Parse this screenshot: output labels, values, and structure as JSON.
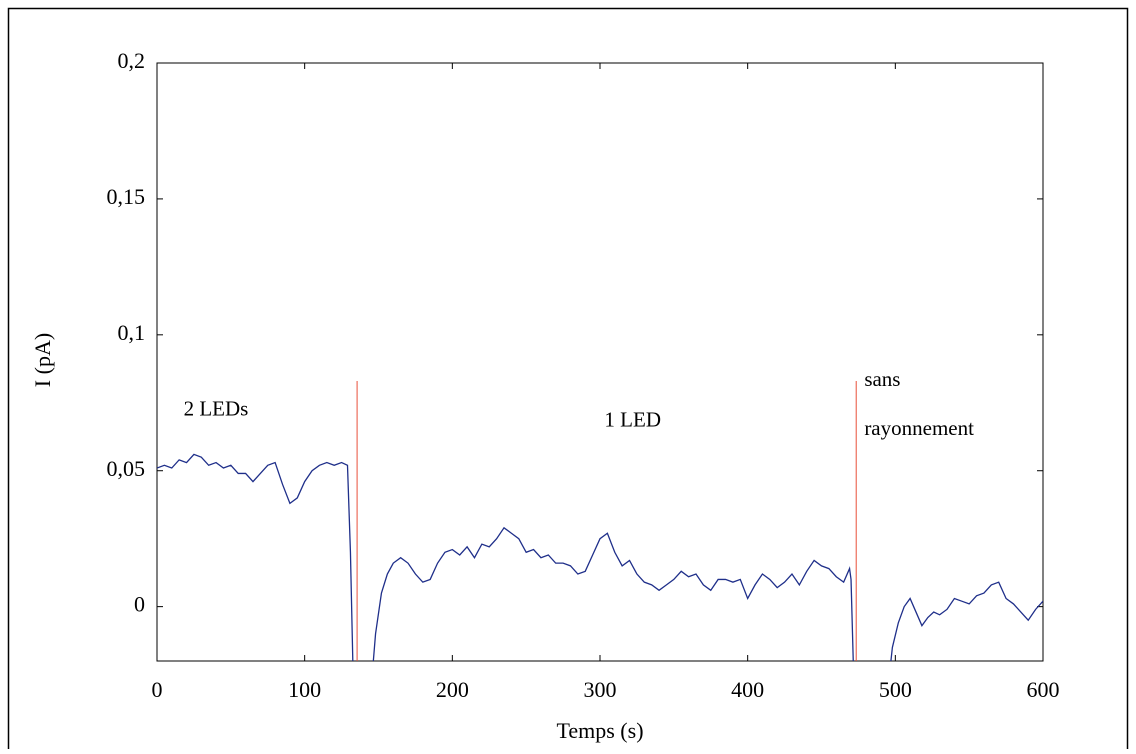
{
  "chart_data": {
    "type": "line",
    "xlabel": "Temps (s)",
    "ylabel": "I (pA)",
    "xlim": [
      0,
      600
    ],
    "ylim": [
      -0.02,
      0.2
    ],
    "xticks": [
      0,
      100,
      200,
      300,
      400,
      500,
      600
    ],
    "yticks": [
      {
        "value": 0,
        "label": "0"
      },
      {
        "value": 0.05,
        "label": "0,05"
      },
      {
        "value": 0.1,
        "label": "0,1"
      },
      {
        "value": 0.15,
        "label": "0,15"
      },
      {
        "value": 0.2,
        "label": "0,2"
      }
    ],
    "vlines": {
      "color": "#e8503a",
      "x": [
        135.5,
        473.5
      ],
      "top": 0.083
    },
    "annotations": [
      {
        "text": "2 LEDs",
        "x": 18,
        "y": 0.072
      },
      {
        "text": "1 LED",
        "x": 303,
        "y": 0.068
      },
      {
        "text": "sans",
        "x": 479,
        "y": 0.083
      },
      {
        "text": "rayonnement",
        "x": 479,
        "y": 0.065
      }
    ],
    "series": [
      {
        "color": "#1f2f8a",
        "x": [
          0,
          5,
          10,
          15,
          20,
          25,
          30,
          35,
          40,
          45,
          50,
          55,
          60,
          65,
          70,
          75,
          80,
          85,
          90,
          95,
          100,
          105,
          110,
          115,
          120,
          125,
          129,
          131,
          133,
          145,
          148,
          152,
          156,
          160,
          165,
          170,
          175,
          180,
          185,
          190,
          195,
          200,
          205,
          210,
          215,
          220,
          225,
          230,
          235,
          240,
          245,
          250,
          255,
          260,
          265,
          270,
          275,
          280,
          285,
          290,
          295,
          300,
          305,
          310,
          315,
          320,
          325,
          330,
          335,
          340,
          345,
          350,
          355,
          360,
          365,
          370,
          375,
          380,
          385,
          390,
          395,
          400,
          405,
          410,
          415,
          420,
          425,
          430,
          435,
          440,
          445,
          450,
          455,
          460,
          465,
          469,
          470,
          472,
          495,
          498,
          502,
          506,
          510,
          514,
          518,
          522,
          526,
          530,
          535,
          540,
          545,
          550,
          555,
          560,
          565,
          570,
          575,
          580,
          585,
          590,
          595,
          600
        ],
        "values": [
          0.051,
          0.052,
          0.051,
          0.054,
          0.053,
          0.056,
          0.055,
          0.052,
          0.053,
          0.051,
          0.052,
          0.049,
          0.049,
          0.046,
          0.049,
          0.052,
          0.053,
          0.045,
          0.038,
          0.04,
          0.046,
          0.05,
          0.052,
          0.053,
          0.052,
          0.053,
          0.052,
          0.02,
          -0.03,
          -0.03,
          -0.01,
          0.005,
          0.012,
          0.016,
          0.018,
          0.016,
          0.012,
          0.009,
          0.01,
          0.016,
          0.02,
          0.021,
          0.019,
          0.022,
          0.018,
          0.023,
          0.022,
          0.025,
          0.029,
          0.027,
          0.025,
          0.02,
          0.021,
          0.018,
          0.019,
          0.016,
          0.016,
          0.015,
          0.012,
          0.013,
          0.019,
          0.025,
          0.027,
          0.02,
          0.015,
          0.017,
          0.012,
          0.009,
          0.008,
          0.006,
          0.008,
          0.01,
          0.013,
          0.011,
          0.012,
          0.008,
          0.006,
          0.01,
          0.01,
          0.009,
          0.01,
          0.003,
          0.008,
          0.012,
          0.01,
          0.007,
          0.009,
          0.012,
          0.008,
          0.013,
          0.017,
          0.015,
          0.014,
          0.011,
          0.009,
          0.014,
          0.01,
          -0.03,
          -0.03,
          -0.015,
          -0.006,
          0,
          0.003,
          -0.002,
          -0.007,
          -0.004,
          -0.002,
          -0.003,
          -0.001,
          0.003,
          0.002,
          0.001,
          0.004,
          0.005,
          0.008,
          0.009,
          0.003,
          0.001,
          -0.002,
          -0.005,
          -0.001,
          0.002
        ]
      }
    ]
  }
}
